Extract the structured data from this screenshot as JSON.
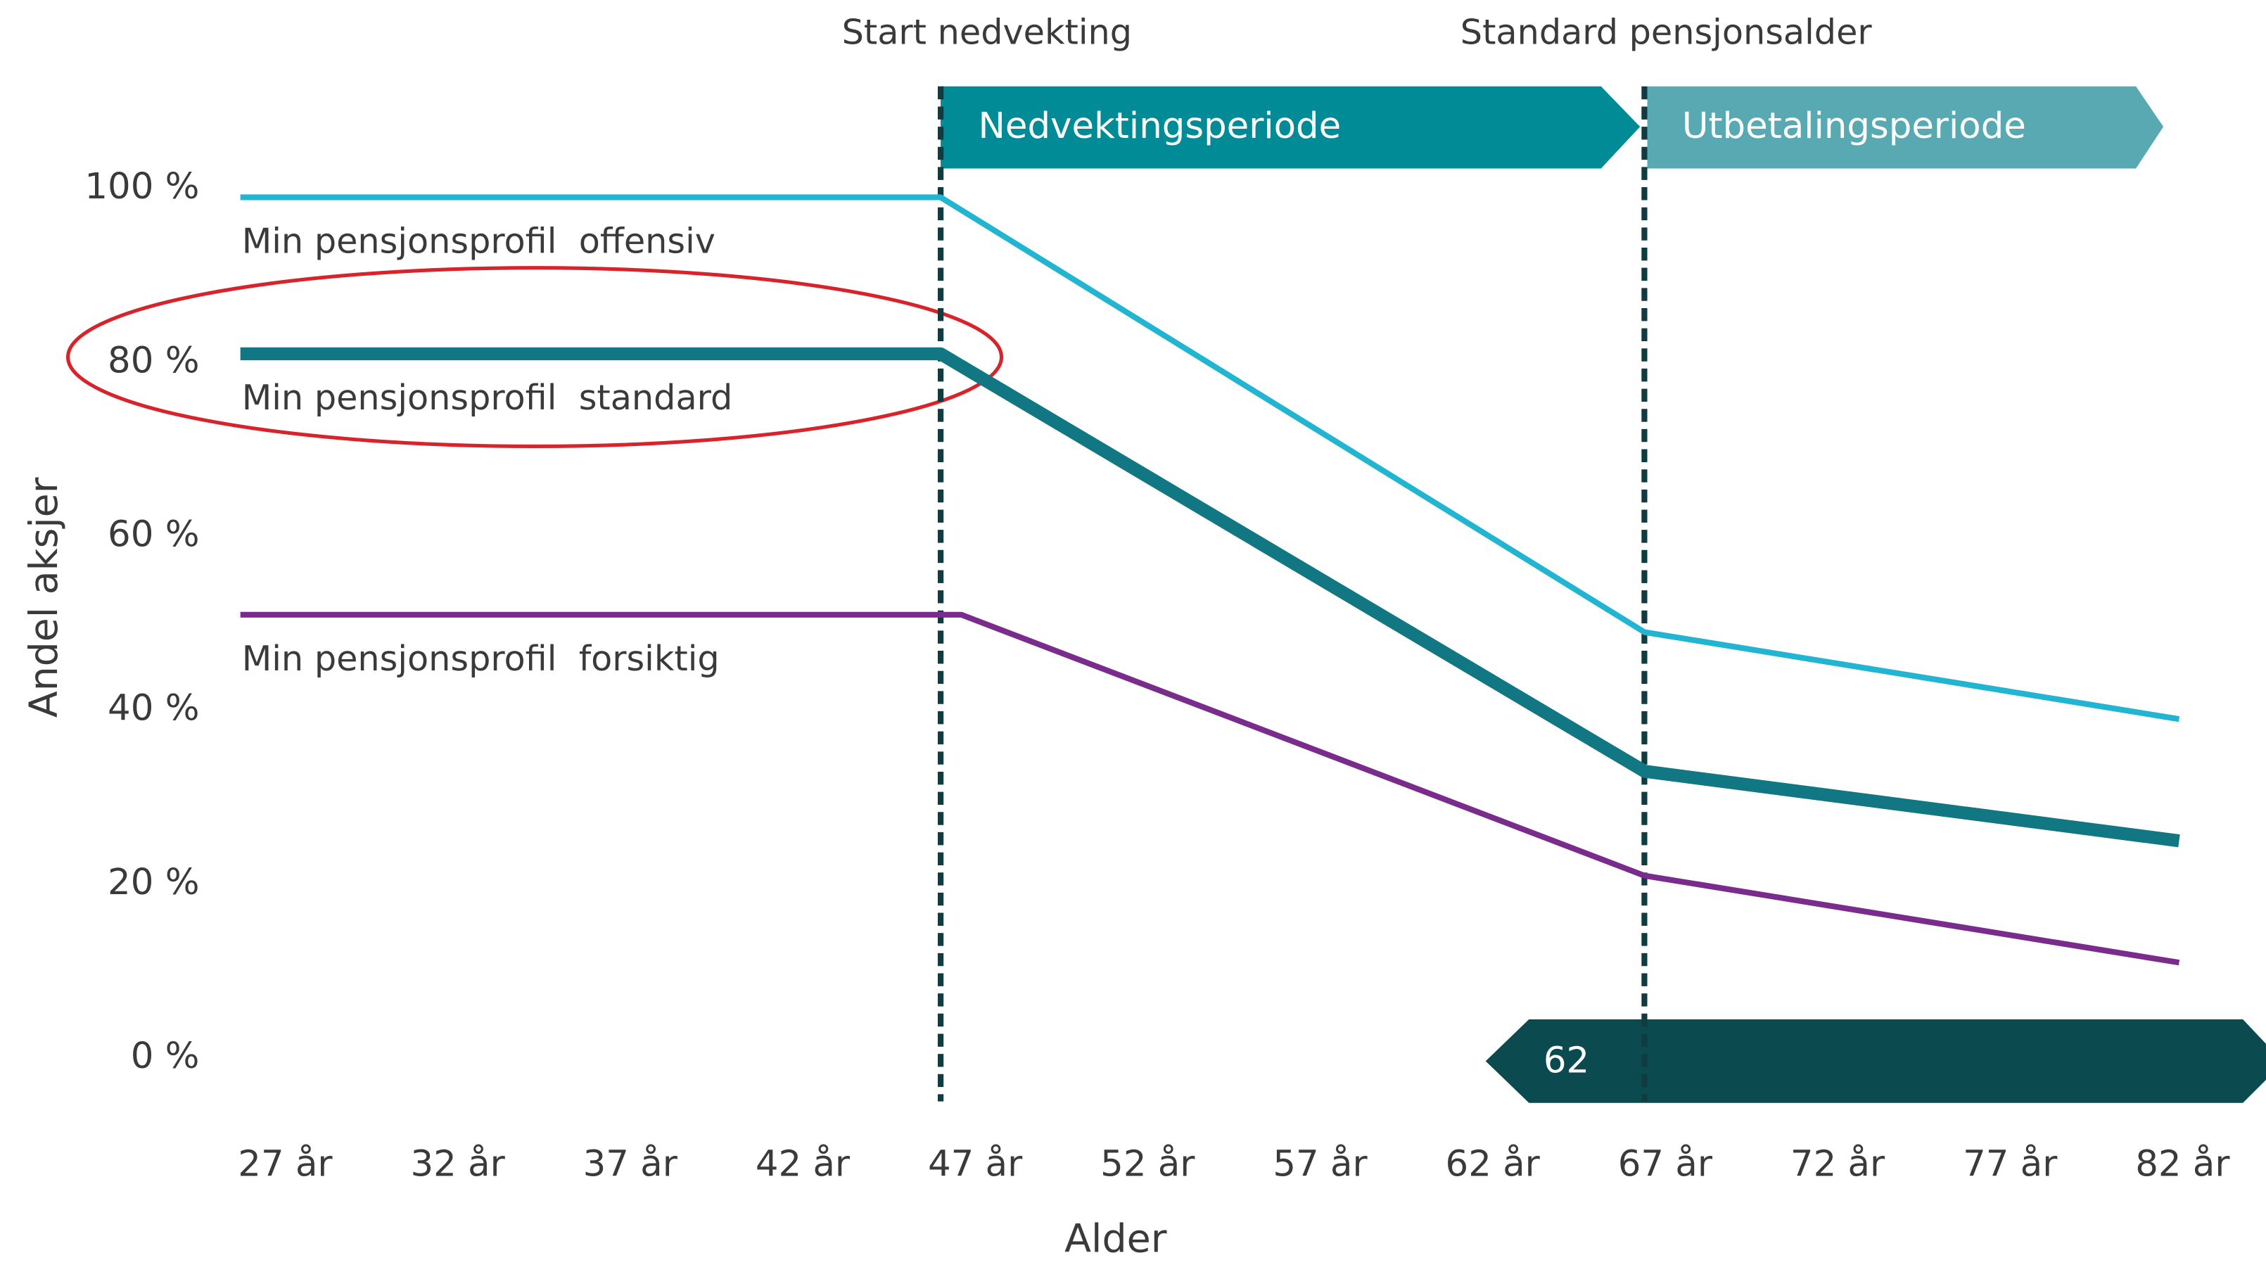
{
  "chart_data": {
    "type": "line",
    "xlabel": "Alder",
    "ylabel": "Andel aksjer",
    "xlim": [
      22,
      84
    ],
    "ylim": [
      0,
      100
    ],
    "xticks": [
      {
        "value": 27,
        "label": "27 år"
      },
      {
        "value": 32,
        "label": "32 år"
      },
      {
        "value": 37,
        "label": "37 år"
      },
      {
        "value": 42,
        "label": "42 år"
      },
      {
        "value": 47,
        "label": "47 år"
      },
      {
        "value": 52,
        "label": "52 år"
      },
      {
        "value": 57,
        "label": "57 år"
      },
      {
        "value": 62,
        "label": "62 år"
      },
      {
        "value": 67,
        "label": "67 år"
      },
      {
        "value": 72,
        "label": "72 år"
      },
      {
        "value": 77,
        "label": "77 år"
      },
      {
        "value": 82,
        "label": "82 år"
      }
    ],
    "yticks": [
      {
        "value": 0,
        "label": "0 %"
      },
      {
        "value": 20,
        "label": "20 %"
      },
      {
        "value": 40,
        "label": "40 %"
      },
      {
        "value": 60,
        "label": "60 %"
      },
      {
        "value": 80,
        "label": "80 %"
      },
      {
        "value": 100,
        "label": "100 %"
      }
    ],
    "series": [
      {
        "name": "Min pensjonsprofil  offensiv",
        "color": "#22b5d2",
        "width": 4,
        "x": [
          25.7,
          46.0,
          66.4,
          81.9
        ],
        "values": [
          99,
          99,
          49,
          39
        ]
      },
      {
        "name": "Min pensjonsprofil  standard",
        "color": "#117782",
        "width": 9,
        "x": [
          25.7,
          46.0,
          66.4,
          81.9
        ],
        "values": [
          81,
          81,
          33,
          25
        ]
      },
      {
        "name": "Min pensjonsprofil  forsiktig",
        "color": "#7a2c8c",
        "width": 4,
        "x": [
          25.7,
          46.6,
          66.4,
          81.9
        ],
        "values": [
          51,
          51,
          21,
          11
        ]
      }
    ],
    "annotations": [
      {
        "text": "Start nedvekting",
        "x": 46.0
      },
      {
        "text": "Standard pensjonsalder",
        "x": 66.4
      }
    ],
    "periods": [
      "Nedvektingsperiode",
      "Utbetalingsperiode"
    ],
    "retirement_badge": "62"
  }
}
